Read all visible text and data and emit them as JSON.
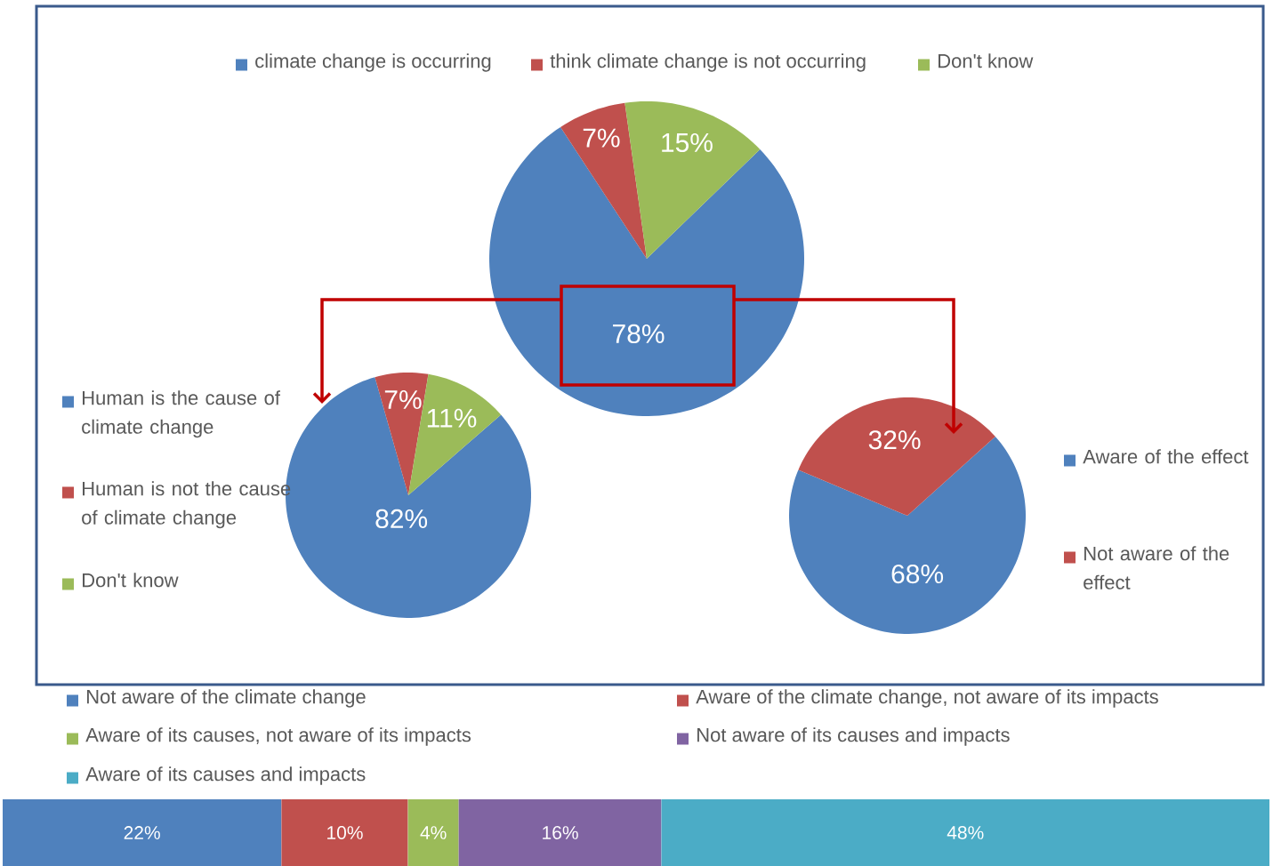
{
  "chart_data": [
    {
      "type": "pie",
      "categories": [
        "climate change is occurring",
        "think climate change is not occurring",
        "Don't know"
      ],
      "values": [
        78,
        7,
        15
      ],
      "value_labels": [
        "78%",
        "7%",
        "15%"
      ],
      "colors": [
        "#4f81bd",
        "#c0504d",
        "#9bbb59"
      ],
      "legend": "top"
    },
    {
      "type": "pie",
      "categories": [
        "Human is the cause of climate change",
        "Human is not the cause of climate change",
        "Don't know"
      ],
      "values": [
        82,
        7,
        11
      ],
      "value_labels": [
        "82%",
        "7%",
        "11%"
      ],
      "colors": [
        "#4f81bd",
        "#c0504d",
        "#9bbb59"
      ],
      "legend": "left"
    },
    {
      "type": "pie",
      "categories": [
        "Aware of the effect",
        "Not aware of the effect"
      ],
      "values": [
        68,
        32
      ],
      "value_labels": [
        "68%",
        "32%"
      ],
      "colors": [
        "#4f81bd",
        "#c0504d"
      ],
      "legend": "right"
    },
    {
      "type": "bar",
      "orientation": "horizontal",
      "stacked": true,
      "categories": [
        null
      ],
      "xlim": [
        0,
        100
      ],
      "legend": "top",
      "series": [
        {
          "name": "Not aware of the climate change",
          "color": "#4f81bd",
          "values": [
            22
          ],
          "value_labels": [
            "22%"
          ]
        },
        {
          "name": "Aware of the climate change, not aware of its impacts",
          "color": "#c0504d",
          "values": [
            10
          ],
          "value_labels": [
            "10%"
          ]
        },
        {
          "name": "Aware of its causes, not aware of its impacts",
          "color": "#9bbb59",
          "values": [
            4
          ],
          "value_labels": [
            "4%"
          ]
        },
        {
          "name": "Not aware of its causes and impacts",
          "color": "#8064a2",
          "values": [
            16
          ],
          "value_labels": [
            "16%"
          ]
        },
        {
          "name": "Aware of its causes and impacts",
          "color": "#4bacc6",
          "values": [
            48
          ],
          "value_labels": [
            "48%"
          ]
        }
      ]
    }
  ]
}
